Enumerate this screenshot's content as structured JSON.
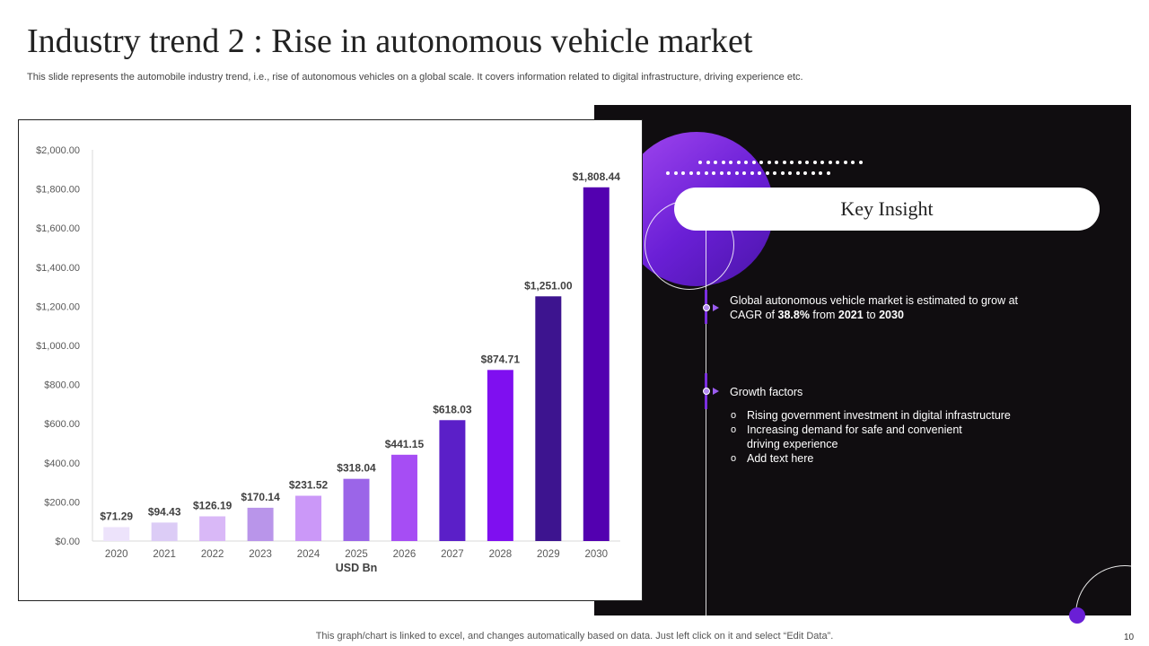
{
  "slide": {
    "title": "Industry trend 2 : Rise in autonomous vehicle market",
    "subtitle": "This slide represents the automobile industry trend, i.e., rise of autonomous vehicles on a global scale. It covers information related to digital infrastructure, driving experience etc.",
    "footer": "This graph/chart is linked to excel, and changes automatically based on data. Just left click on it and select “Edit Data”.",
    "page_number": "10"
  },
  "insight_panel": {
    "heading": "Key Insight",
    "point1": {
      "text_a": "Global autonomous vehicle market is estimated to grow at",
      "text_b": "CAGR of ",
      "cagr": "38.8%",
      "text_c": " from ",
      "start_year": "2021",
      "text_d": " to ",
      "end_year": "2030"
    },
    "point2": {
      "heading": "Growth factors",
      "bullets": [
        "Rising government investment in digital infrastructure",
        "Increasing demand for safe and convenient driving experience",
        "Add text here"
      ]
    },
    "colors": {
      "panel_bg": "#100d10",
      "accent": "#6a1fd6",
      "accent_light": "#a348f0"
    }
  },
  "chart_data": {
    "type": "bar",
    "categories": [
      "2020",
      "2021",
      "2022",
      "2023",
      "2024",
      "2025",
      "2026",
      "2027",
      "2028",
      "2029",
      "2030"
    ],
    "values": [
      71.29,
      94.43,
      126.19,
      170.14,
      231.52,
      318.04,
      441.15,
      618.03,
      874.71,
      1251.0,
      1808.44
    ],
    "data_labels": [
      "$71.29",
      "$94.43",
      "$126.19",
      "$170.14",
      "$231.52",
      "$318.04",
      "$441.15",
      "$618.03",
      "$874.71",
      "$1,251.00",
      "$1,808.44"
    ],
    "bar_colors": [
      "#ede3fb",
      "#dcccf6",
      "#d9b8f7",
      "#b995ea",
      "#cb98f8",
      "#9b65e8",
      "#a64df4",
      "#5b1fc8",
      "#7f0ff0",
      "#3d148f",
      "#5300b0"
    ],
    "xlabel": "USD Bn",
    "ylabel": "",
    "ylim": [
      0,
      2000
    ],
    "yticks": [
      0,
      200,
      400,
      600,
      800,
      1000,
      1200,
      1400,
      1600,
      1800,
      2000
    ],
    "ytick_labels": [
      "$0.00",
      "$200.00",
      "$400.00",
      "$600.00",
      "$800.00",
      "$1,000.00",
      "$1,200.00",
      "$1,400.00",
      "$1,600.00",
      "$1,800.00",
      "$2,000.00"
    ],
    "grid": false,
    "legend": "none"
  }
}
